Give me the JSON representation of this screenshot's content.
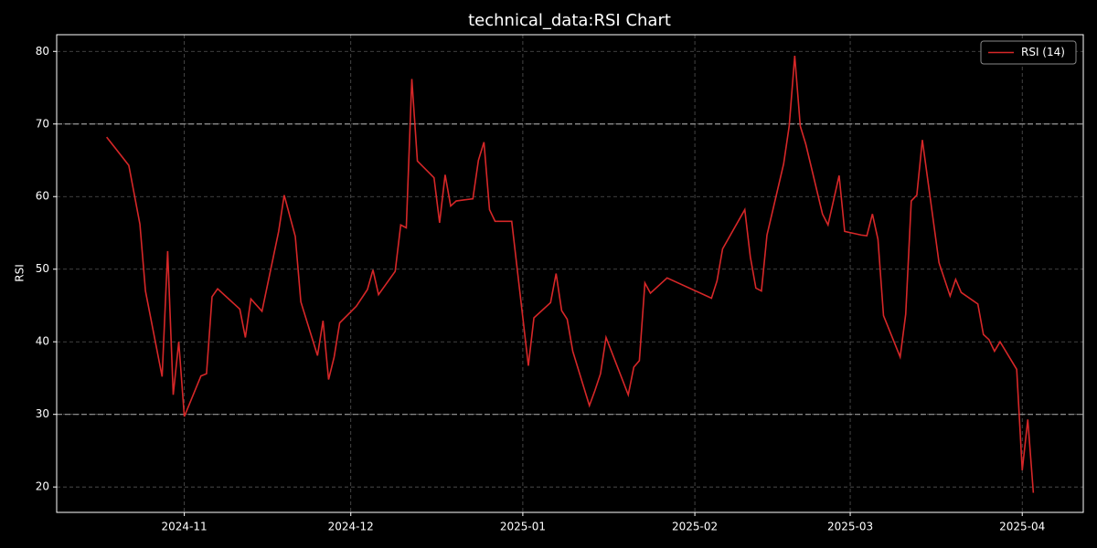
{
  "chart_data": {
    "type": "line",
    "title": "technical_data:RSI Chart",
    "ylabel": "RSI",
    "x": [
      "2024-10-18",
      "2024-10-22",
      "2024-10-24",
      "2024-10-25",
      "2024-10-28",
      "2024-10-29",
      "2024-10-30",
      "2024-10-31",
      "2024-11-01",
      "2024-11-04",
      "2024-11-05",
      "2024-11-06",
      "2024-11-07",
      "2024-11-11",
      "2024-11-12",
      "2024-11-13",
      "2024-11-15",
      "2024-11-18",
      "2024-11-19",
      "2024-11-21",
      "2024-11-22",
      "2024-11-25",
      "2024-11-26",
      "2024-11-27",
      "2024-11-28",
      "2024-11-29",
      "2024-12-02",
      "2024-12-04",
      "2024-12-05",
      "2024-12-06",
      "2024-12-09",
      "2024-12-10",
      "2024-12-11",
      "2024-12-12",
      "2024-12-13",
      "2024-12-16",
      "2024-12-17",
      "2024-12-18",
      "2024-12-19",
      "2024-12-20",
      "2024-12-23",
      "2024-12-24",
      "2024-12-25",
      "2024-12-26",
      "2024-12-27",
      "2024-12-30",
      "2025-01-02",
      "2025-01-03",
      "2025-01-06",
      "2025-01-07",
      "2025-01-08",
      "2025-01-09",
      "2025-01-10",
      "2025-01-13",
      "2025-01-14",
      "2025-01-15",
      "2025-01-16",
      "2025-01-20",
      "2025-01-21",
      "2025-01-22",
      "2025-01-23",
      "2025-01-24",
      "2025-01-27",
      "2025-02-04",
      "2025-02-05",
      "2025-02-06",
      "2025-02-10",
      "2025-02-11",
      "2025-02-12",
      "2025-02-13",
      "2025-02-14",
      "2025-02-17",
      "2025-02-18",
      "2025-02-19",
      "2025-02-20",
      "2025-02-21",
      "2025-02-24",
      "2025-02-25",
      "2025-02-27",
      "2025-02-28",
      "2025-03-03",
      "2025-03-04",
      "2025-03-05",
      "2025-03-06",
      "2025-03-07",
      "2025-03-10",
      "2025-03-11",
      "2025-03-12",
      "2025-03-13",
      "2025-03-14",
      "2025-03-17",
      "2025-03-19",
      "2025-03-20",
      "2025-03-21",
      "2025-03-24",
      "2025-03-25",
      "2025-03-26",
      "2025-03-27",
      "2025-03-28",
      "2025-03-31",
      "2025-04-01",
      "2025-04-02",
      "2025-04-03"
    ],
    "series": [
      {
        "name": "RSI (14)",
        "color": "#d62728",
        "values": [
          68.2,
          64.3,
          56.2,
          47.0,
          35.2,
          52.5,
          32.7,
          40.0,
          29.7,
          35.3,
          35.6,
          46.2,
          47.3,
          44.5,
          40.6,
          45.9,
          44.2,
          55.2,
          60.2,
          54.5,
          45.5,
          38.1,
          42.9,
          34.8,
          37.9,
          42.6,
          44.9,
          47.2,
          49.9,
          46.5,
          49.7,
          56.1,
          55.7,
          76.2,
          64.9,
          62.6,
          56.4,
          63.0,
          58.7,
          59.4,
          59.7,
          65.0,
          67.5,
          58.2,
          56.6,
          56.6,
          36.7,
          43.3,
          45.4,
          49.4,
          44.3,
          43.1,
          38.7,
          31.2,
          33.3,
          35.6,
          40.6,
          32.7,
          36.5,
          37.4,
          48.1,
          46.7,
          48.8,
          46.0,
          48.4,
          52.8,
          58.2,
          51.7,
          47.4,
          47.0,
          54.7,
          64.5,
          69.7,
          79.4,
          69.7,
          67.2,
          57.6,
          56.1,
          62.9,
          55.2,
          54.7,
          54.6,
          57.6,
          54.1,
          43.6,
          37.9,
          43.8,
          59.4,
          60.2,
          67.8,
          50.9,
          46.3,
          48.6,
          46.8,
          45.2,
          41.0,
          40.3,
          38.7,
          40.0,
          36.2,
          22.3,
          29.3,
          19.2
        ]
      }
    ],
    "reference_lines": [
      70,
      30
    ],
    "xlim": [
      "2024-10-09",
      "2025-04-12"
    ],
    "xticks": [
      {
        "value": "2024-11-01",
        "label": "2024-11"
      },
      {
        "value": "2024-12-01",
        "label": "2024-12"
      },
      {
        "value": "2025-01-01",
        "label": "2025-01"
      },
      {
        "value": "2025-02-01",
        "label": "2025-02"
      },
      {
        "value": "2025-03-01",
        "label": "2025-03"
      },
      {
        "value": "2025-04-01",
        "label": "2025-04"
      }
    ],
    "ylim": [
      16.5,
      82.3
    ],
    "yticks": [
      20,
      30,
      40,
      50,
      60,
      70,
      80
    ],
    "grid": true,
    "legend": "upper right"
  }
}
